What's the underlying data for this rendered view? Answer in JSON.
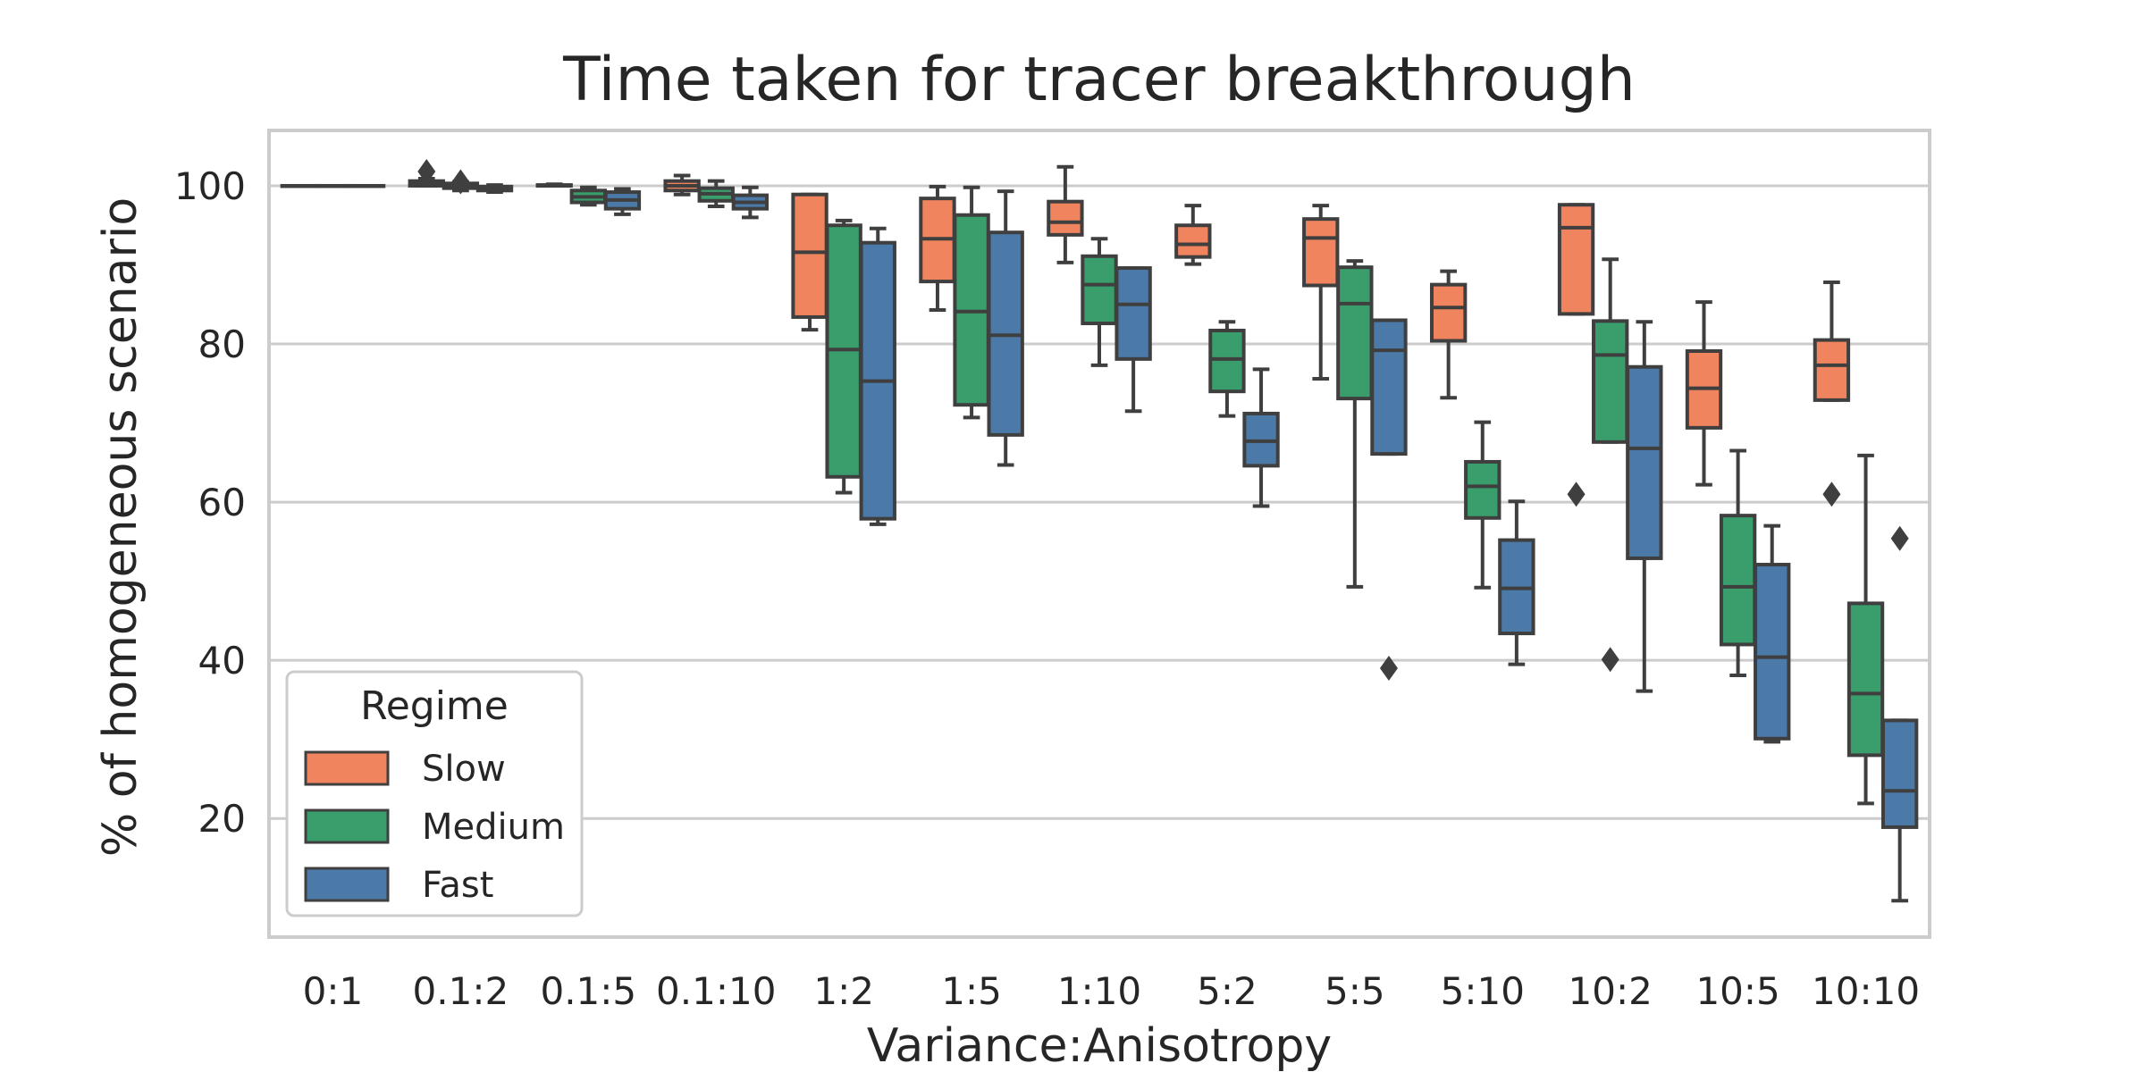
{
  "chart_data": {
    "type": "box",
    "title": "Time taken for tracer breakthrough",
    "xlabel": "Variance:Anisotropy",
    "ylabel": "% of homogeneous scenario",
    "categories": [
      "0:1",
      "0.1:2",
      "0.1:5",
      "0.1:10",
      "1:2",
      "1:5",
      "1:10",
      "5:2",
      "5:5",
      "5:10",
      "10:2",
      "10:5",
      "10:10"
    ],
    "ylim": [
      5,
      107
    ],
    "yticks": [
      20,
      40,
      60,
      80,
      100
    ],
    "grid": true,
    "legend": {
      "title": "Regime",
      "placement": "lower-left"
    },
    "series": [
      {
        "name": "Slow",
        "color": "#f0845e",
        "boxes": [
          {
            "whislo": 100,
            "q1": 100,
            "med": 100,
            "q3": 100,
            "whishi": 100,
            "fliers": []
          },
          {
            "whislo": 100,
            "q1": 100,
            "med": 100.3,
            "q3": 100.6,
            "whishi": 100.9,
            "fliers": [
              101.8
            ]
          },
          {
            "whislo": 100,
            "q1": 100,
            "med": 100,
            "q3": 100.1,
            "whishi": 100.2,
            "fliers": []
          },
          {
            "whislo": 98.9,
            "q1": 99.4,
            "med": 100,
            "q3": 100.6,
            "whishi": 101.3,
            "fliers": []
          },
          {
            "whislo": 81.8,
            "q1": 83.4,
            "med": 91.6,
            "q3": 98.9,
            "whishi": 98.9,
            "fliers": []
          },
          {
            "whislo": 84.3,
            "q1": 87.9,
            "med": 93.3,
            "q3": 98.4,
            "whishi": 99.9,
            "fliers": []
          },
          {
            "whislo": 90.3,
            "q1": 93.8,
            "med": 95.4,
            "q3": 98.0,
            "whishi": 102.4,
            "fliers": []
          },
          {
            "whislo": 90.1,
            "q1": 91.0,
            "med": 92.6,
            "q3": 95.0,
            "whishi": 97.5,
            "fliers": []
          },
          {
            "whislo": 75.6,
            "q1": 87.4,
            "med": 93.4,
            "q3": 95.8,
            "whishi": 97.5,
            "fliers": []
          },
          {
            "whislo": 73.2,
            "q1": 80.4,
            "med": 84.6,
            "q3": 87.5,
            "whishi": 89.2,
            "fliers": []
          },
          {
            "whislo": 83.8,
            "q1": 83.8,
            "med": 94.7,
            "q3": 97.6,
            "whishi": 97.6,
            "fliers": [
              61.0
            ]
          },
          {
            "whislo": 62.2,
            "q1": 69.4,
            "med": 74.4,
            "q3": 79.1,
            "whishi": 85.3,
            "fliers": []
          },
          {
            "whislo": 72.9,
            "q1": 72.9,
            "med": 77.3,
            "q3": 80.5,
            "whishi": 87.8,
            "fliers": [
              61.0
            ]
          }
        ]
      },
      {
        "name": "Medium",
        "color": "#3a9e6c",
        "boxes": [
          {
            "whislo": 100,
            "q1": 100,
            "med": 100,
            "q3": 100,
            "whishi": 100,
            "fliers": []
          },
          {
            "whislo": 99.4,
            "q1": 99.7,
            "med": 100,
            "q3": 100.3,
            "whishi": 100.5,
            "fliers": [
              100.5
            ]
          },
          {
            "whislo": 97.6,
            "q1": 97.9,
            "med": 98.6,
            "q3": 99.4,
            "whishi": 99.8,
            "fliers": []
          },
          {
            "whislo": 97.4,
            "q1": 98.1,
            "med": 99.0,
            "q3": 99.7,
            "whishi": 100.6,
            "fliers": []
          },
          {
            "whislo": 61.2,
            "q1": 63.2,
            "med": 79.3,
            "q3": 95.0,
            "whishi": 95.6,
            "fliers": []
          },
          {
            "whislo": 70.7,
            "q1": 72.3,
            "med": 84.1,
            "q3": 96.3,
            "whishi": 99.8,
            "fliers": []
          },
          {
            "whislo": 77.3,
            "q1": 82.6,
            "med": 87.5,
            "q3": 91.1,
            "whishi": 93.3,
            "fliers": []
          },
          {
            "whislo": 70.9,
            "q1": 74.0,
            "med": 78.1,
            "q3": 81.7,
            "whishi": 82.8,
            "fliers": []
          },
          {
            "whislo": 49.3,
            "q1": 73.1,
            "med": 85.1,
            "q3": 89.7,
            "whishi": 90.5,
            "fliers": []
          },
          {
            "whislo": 49.2,
            "q1": 58.0,
            "med": 62.0,
            "q3": 65.1,
            "whishi": 70.1,
            "fliers": []
          },
          {
            "whislo": 67.6,
            "q1": 67.6,
            "med": 78.6,
            "q3": 82.9,
            "whishi": 90.7,
            "fliers": [
              40.1
            ]
          },
          {
            "whislo": 38.1,
            "q1": 42.0,
            "med": 49.3,
            "q3": 58.3,
            "whishi": 66.5,
            "fliers": []
          },
          {
            "whislo": 21.9,
            "q1": 28.0,
            "med": 35.8,
            "q3": 47.2,
            "whishi": 65.9,
            "fliers": []
          }
        ]
      },
      {
        "name": "Fast",
        "color": "#4b7aa8",
        "boxes": [
          {
            "whislo": 100,
            "q1": 100,
            "med": 100,
            "q3": 100,
            "whishi": 100,
            "fliers": []
          },
          {
            "whislo": 99.2,
            "q1": 99.4,
            "med": 99.6,
            "q3": 99.9,
            "whishi": 100.1,
            "fliers": []
          },
          {
            "whislo": 96.4,
            "q1": 97.1,
            "med": 98.2,
            "q3": 99.2,
            "whishi": 99.6,
            "fliers": []
          },
          {
            "whislo": 96.0,
            "q1": 97.1,
            "med": 97.9,
            "q3": 98.8,
            "whishi": 99.8,
            "fliers": []
          },
          {
            "whislo": 57.2,
            "q1": 57.9,
            "med": 75.3,
            "q3": 92.8,
            "whishi": 94.6,
            "fliers": []
          },
          {
            "whislo": 64.7,
            "q1": 68.5,
            "med": 81.1,
            "q3": 94.1,
            "whishi": 99.3,
            "fliers": []
          },
          {
            "whislo": 71.5,
            "q1": 78.1,
            "med": 85.0,
            "q3": 89.6,
            "whishi": 89.6,
            "fliers": []
          },
          {
            "whislo": 59.5,
            "q1": 64.6,
            "med": 67.7,
            "q3": 71.2,
            "whishi": 76.8,
            "fliers": []
          },
          {
            "whislo": 66.1,
            "q1": 66.1,
            "med": 79.2,
            "q3": 83.0,
            "whishi": 83.0,
            "fliers": [
              39.0
            ]
          },
          {
            "whislo": 39.5,
            "q1": 43.4,
            "med": 49.1,
            "q3": 55.2,
            "whishi": 60.1,
            "fliers": []
          },
          {
            "whislo": 36.1,
            "q1": 52.9,
            "med": 66.8,
            "q3": 77.1,
            "whishi": 82.8,
            "fliers": []
          },
          {
            "whislo": 29.7,
            "q1": 30.1,
            "med": 40.4,
            "q3": 52.1,
            "whishi": 57.0,
            "fliers": []
          },
          {
            "whislo": 9.6,
            "q1": 18.9,
            "med": 23.5,
            "q3": 32.4,
            "whishi": 32.4,
            "fliers": [
              55.4
            ]
          }
        ]
      }
    ]
  }
}
